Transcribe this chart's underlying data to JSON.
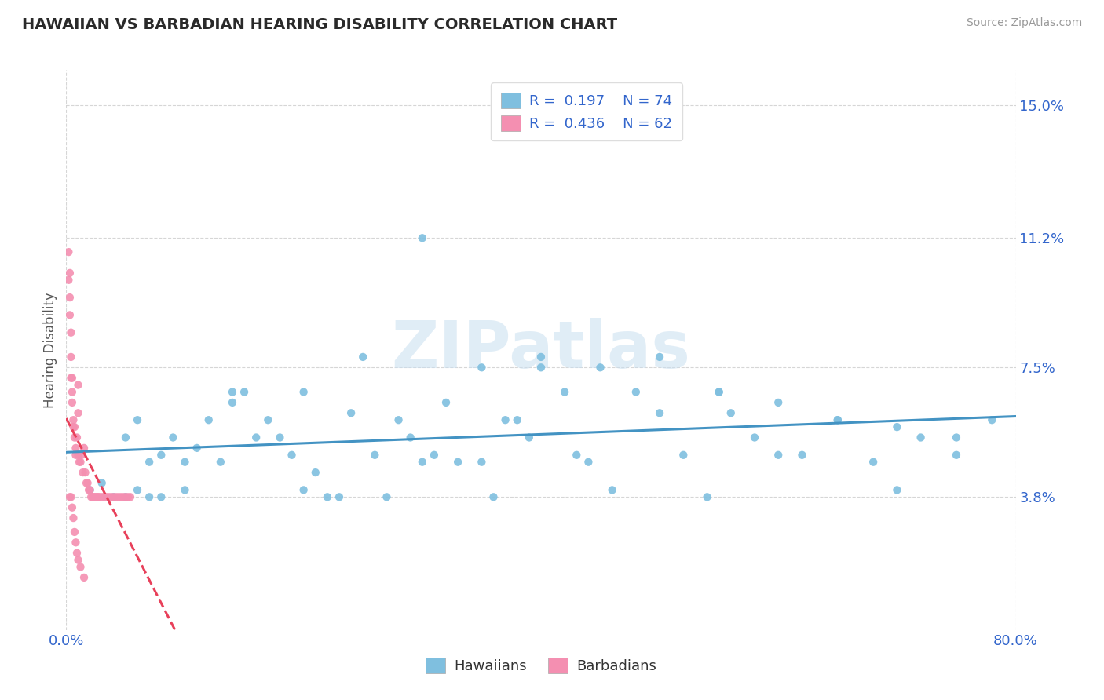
{
  "title": "HAWAIIAN VS BARBADIAN HEARING DISABILITY CORRELATION CHART",
  "source": "Source: ZipAtlas.com",
  "xlabel": "",
  "ylabel": "Hearing Disability",
  "xlim": [
    0.0,
    0.8
  ],
  "ylim": [
    0.0,
    0.16
  ],
  "yticks": [
    0.038,
    0.075,
    0.112,
    0.15
  ],
  "ytick_labels": [
    "3.8%",
    "7.5%",
    "11.2%",
    "15.0%"
  ],
  "hawaiians_R": 0.197,
  "hawaiians_N": 74,
  "barbadians_R": 0.436,
  "barbadians_N": 62,
  "hawaiians_color": "#7fbfdf",
  "barbadians_color": "#f48fb1",
  "hawaiians_line_color": "#4393c3",
  "barbadians_line_color": "#e8405a",
  "legend_text_color": "#3366cc",
  "tick_color": "#3366cc",
  "background_color": "#ffffff",
  "grid_color": "#cccccc",
  "watermark_text": "ZIPatlas",
  "hawaiians_x": [
    0.02,
    0.03,
    0.04,
    0.05,
    0.05,
    0.06,
    0.06,
    0.07,
    0.07,
    0.08,
    0.08,
    0.09,
    0.1,
    0.1,
    0.11,
    0.12,
    0.13,
    0.14,
    0.14,
    0.15,
    0.16,
    0.17,
    0.18,
    0.19,
    0.2,
    0.2,
    0.21,
    0.22,
    0.23,
    0.24,
    0.25,
    0.26,
    0.27,
    0.28,
    0.29,
    0.3,
    0.31,
    0.32,
    0.33,
    0.35,
    0.36,
    0.37,
    0.38,
    0.39,
    0.4,
    0.42,
    0.43,
    0.44,
    0.46,
    0.48,
    0.5,
    0.52,
    0.54,
    0.55,
    0.56,
    0.58,
    0.6,
    0.62,
    0.65,
    0.68,
    0.7,
    0.72,
    0.75,
    0.3,
    0.35,
    0.4,
    0.45,
    0.5,
    0.55,
    0.6,
    0.65,
    0.7,
    0.75,
    0.78
  ],
  "hawaiians_y": [
    0.04,
    0.042,
    0.038,
    0.038,
    0.055,
    0.04,
    0.06,
    0.038,
    0.048,
    0.038,
    0.05,
    0.055,
    0.04,
    0.048,
    0.052,
    0.06,
    0.048,
    0.068,
    0.065,
    0.068,
    0.055,
    0.06,
    0.055,
    0.05,
    0.04,
    0.068,
    0.045,
    0.038,
    0.038,
    0.062,
    0.078,
    0.05,
    0.038,
    0.06,
    0.055,
    0.048,
    0.05,
    0.065,
    0.048,
    0.048,
    0.038,
    0.06,
    0.06,
    0.055,
    0.075,
    0.068,
    0.05,
    0.048,
    0.04,
    0.068,
    0.062,
    0.05,
    0.038,
    0.068,
    0.062,
    0.055,
    0.05,
    0.05,
    0.06,
    0.048,
    0.04,
    0.055,
    0.05,
    0.112,
    0.075,
    0.078,
    0.075,
    0.078,
    0.068,
    0.065,
    0.06,
    0.058,
    0.055,
    0.06
  ],
  "barbadians_x": [
    0.002,
    0.002,
    0.003,
    0.003,
    0.003,
    0.004,
    0.004,
    0.004,
    0.005,
    0.005,
    0.005,
    0.006,
    0.006,
    0.007,
    0.007,
    0.008,
    0.008,
    0.009,
    0.01,
    0.01,
    0.01,
    0.011,
    0.012,
    0.013,
    0.014,
    0.015,
    0.016,
    0.017,
    0.018,
    0.019,
    0.02,
    0.021,
    0.022,
    0.023,
    0.024,
    0.025,
    0.026,
    0.027,
    0.028,
    0.03,
    0.032,
    0.034,
    0.036,
    0.038,
    0.04,
    0.042,
    0.044,
    0.046,
    0.048,
    0.05,
    0.052,
    0.054,
    0.003,
    0.004,
    0.005,
    0.006,
    0.007,
    0.008,
    0.009,
    0.01,
    0.012,
    0.015
  ],
  "barbadians_y": [
    0.1,
    0.108,
    0.09,
    0.095,
    0.102,
    0.085,
    0.078,
    0.072,
    0.068,
    0.072,
    0.065,
    0.06,
    0.058,
    0.055,
    0.058,
    0.052,
    0.05,
    0.055,
    0.062,
    0.07,
    0.05,
    0.048,
    0.048,
    0.05,
    0.045,
    0.052,
    0.045,
    0.042,
    0.042,
    0.04,
    0.04,
    0.038,
    0.038,
    0.038,
    0.038,
    0.038,
    0.038,
    0.038,
    0.038,
    0.038,
    0.038,
    0.038,
    0.038,
    0.038,
    0.038,
    0.038,
    0.038,
    0.038,
    0.038,
    0.038,
    0.038,
    0.038,
    0.038,
    0.038,
    0.035,
    0.032,
    0.028,
    0.025,
    0.022,
    0.02,
    0.018,
    0.015
  ]
}
